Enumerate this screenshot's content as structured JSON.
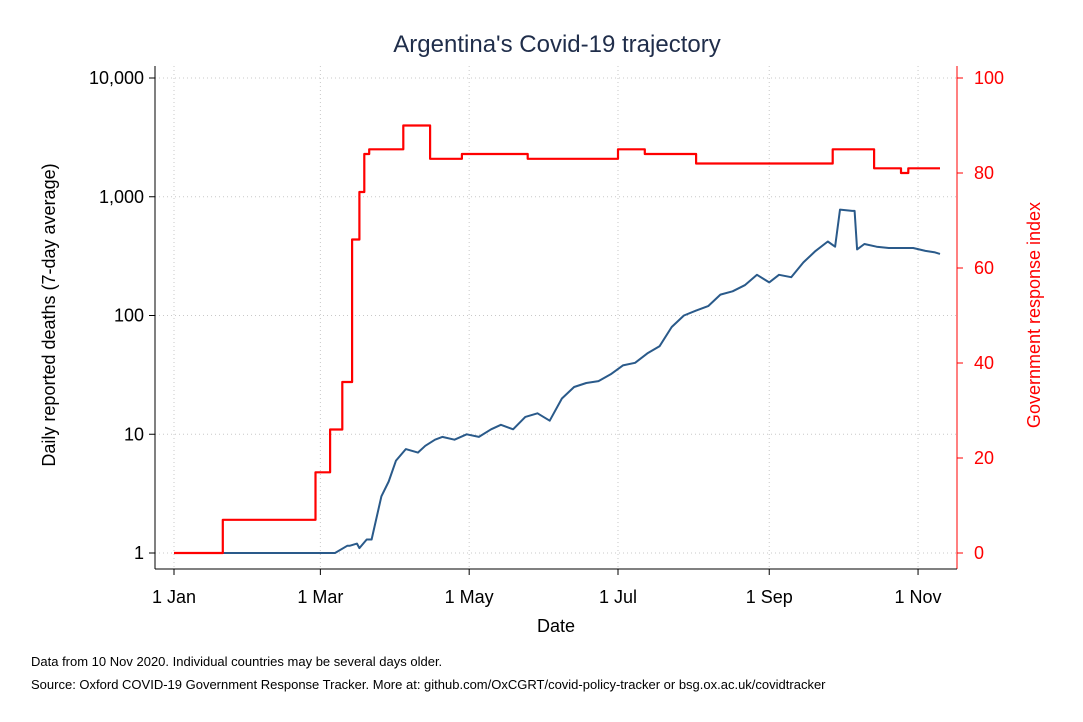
{
  "chart_data": {
    "type": "line",
    "title": "Argentina's Covid-19 trajectory",
    "xlabel": "Date",
    "ylabel_left": "Daily reported deaths (7-day average)",
    "ylabel_right": "Government response index",
    "y_left_scale": "log",
    "y_left_ticks": [
      1,
      10,
      100,
      1000,
      10000
    ],
    "y_left_tick_labels": [
      "1",
      "10",
      "100",
      "1,000",
      "10,000"
    ],
    "y_right_range": [
      0,
      100
    ],
    "y_right_ticks": [
      0,
      20,
      40,
      60,
      80,
      100
    ],
    "x_ticks": [
      "2020-01-01",
      "2020-03-01",
      "2020-05-01",
      "2020-07-01",
      "2020-09-01",
      "2020-11-01"
    ],
    "x_tick_labels": [
      "1 Jan",
      "1 Mar",
      "1 May",
      "1 Jul",
      "1 Sep",
      "1 Nov"
    ],
    "x_range": [
      "2020-01-01",
      "2020-11-10"
    ],
    "grid": true,
    "colors": {
      "deaths": "#2a5a8a",
      "response": "#ff0000"
    },
    "series": [
      {
        "key": "deaths",
        "axis": "left",
        "x": [
          "2020-01-01",
          "2020-03-07",
          "2020-03-12",
          "2020-03-13",
          "2020-03-16",
          "2020-03-17",
          "2020-03-20",
          "2020-03-22",
          "2020-03-26",
          "2020-03-29",
          "2020-04-01",
          "2020-04-05",
          "2020-04-10",
          "2020-04-13",
          "2020-04-17",
          "2020-04-20",
          "2020-04-25",
          "2020-04-30",
          "2020-05-05",
          "2020-05-10",
          "2020-05-14",
          "2020-05-19",
          "2020-05-24",
          "2020-05-29",
          "2020-06-03",
          "2020-06-08",
          "2020-06-13",
          "2020-06-18",
          "2020-06-23",
          "2020-06-28",
          "2020-07-03",
          "2020-07-08",
          "2020-07-13",
          "2020-07-18",
          "2020-07-23",
          "2020-07-28",
          "2020-08-02",
          "2020-08-07",
          "2020-08-12",
          "2020-08-17",
          "2020-08-22",
          "2020-08-27",
          "2020-09-01",
          "2020-09-05",
          "2020-09-10",
          "2020-09-15",
          "2020-09-20",
          "2020-09-25",
          "2020-09-28",
          "2020-09-30",
          "2020-10-05",
          "2020-10-06",
          "2020-10-07",
          "2020-10-10",
          "2020-10-15",
          "2020-10-20",
          "2020-10-25",
          "2020-10-30",
          "2020-11-04",
          "2020-11-08",
          "2020-11-10"
        ],
        "values": [
          1,
          1,
          1.15,
          1.15,
          1.2,
          1.1,
          1.3,
          1.3,
          3,
          4,
          6,
          7.5,
          7,
          8,
          9,
          9.5,
          9,
          10,
          9.5,
          11,
          12,
          11,
          14,
          15,
          13,
          20,
          25,
          27,
          28,
          32,
          38,
          40,
          48,
          55,
          80,
          100,
          110,
          120,
          150,
          160,
          180,
          220,
          190,
          220,
          210,
          280,
          350,
          420,
          380,
          780,
          760,
          760,
          360,
          400,
          380,
          370,
          370,
          370,
          350,
          340,
          330
        ]
      },
      {
        "key": "response",
        "axis": "right",
        "step": true,
        "x": [
          "2020-01-01",
          "2020-01-21",
          "2020-02-28",
          "2020-03-05",
          "2020-03-10",
          "2020-03-14",
          "2020-03-17",
          "2020-03-19",
          "2020-03-21",
          "2020-04-04",
          "2020-04-15",
          "2020-04-28",
          "2020-05-12",
          "2020-05-25",
          "2020-06-17",
          "2020-07-01",
          "2020-07-12",
          "2020-07-17",
          "2020-08-02",
          "2020-08-18",
          "2020-08-30",
          "2020-09-27",
          "2020-10-14",
          "2020-10-25",
          "2020-10-28",
          "2020-11-10"
        ],
        "values": [
          0,
          7,
          17,
          26,
          36,
          66,
          76,
          84,
          85,
          90,
          83,
          84,
          84,
          83,
          83,
          85,
          84,
          84,
          82,
          82,
          82,
          85,
          81,
          80,
          81,
          81
        ]
      }
    ]
  },
  "notes": {
    "data_note": "Data from 10 Nov 2020. Individual countries may be several days older.",
    "source_note": "Source: Oxford COVID-19 Government Response Tracker. More at: github.com/OxCGRT/covid-policy-tracker or bsg.ox.ac.uk/covidtracker"
  }
}
